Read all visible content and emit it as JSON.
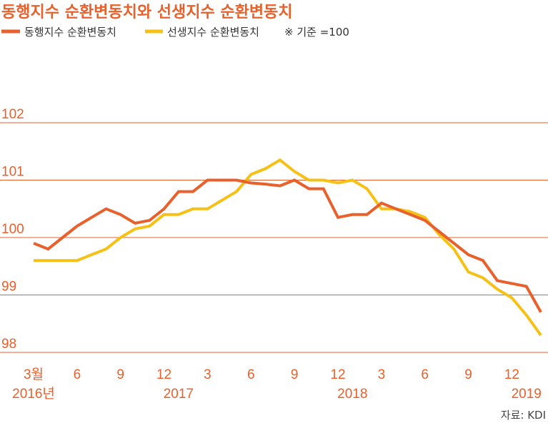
{
  "title": "동행지수 순환변동치와 선생지수 순환변동치",
  "legend_note": "※ 기준 =100",
  "source": "자료: KDI",
  "colors": {
    "coincident": "#e8612c",
    "leading": "#f6c117",
    "grid": "#e8612c",
    "text": "#e8612c"
  },
  "chart_data": {
    "type": "line",
    "x_tick_labels": [
      "3월",
      "6",
      "9",
      "12",
      "3",
      "6",
      "9",
      "12",
      "3",
      "6",
      "9",
      "12"
    ],
    "year_labels": [
      "2016년",
      "2017",
      "2018",
      "2019"
    ],
    "y_ticks": [
      98,
      99,
      100,
      101,
      102
    ],
    "ylim": [
      98,
      102
    ],
    "grid": true,
    "legend_position": "top-left",
    "x": [
      "2016-03",
      "2016-04",
      "2016-05",
      "2016-06",
      "2016-07",
      "2016-08",
      "2016-09",
      "2016-10",
      "2016-11",
      "2016-12",
      "2017-01",
      "2017-02",
      "2017-03",
      "2017-04",
      "2017-05",
      "2017-06",
      "2017-07",
      "2017-08",
      "2017-09",
      "2017-10",
      "2017-11",
      "2017-12",
      "2018-01",
      "2018-02",
      "2018-03",
      "2018-04",
      "2018-05",
      "2018-06",
      "2018-07",
      "2018-08",
      "2018-09",
      "2018-10",
      "2018-11",
      "2018-12",
      "2019-01",
      "2019-02"
    ],
    "series": [
      {
        "name": "동행지수 순환변동치",
        "values": [
          99.9,
          99.8,
          100.0,
          100.2,
          100.35,
          100.5,
          100.4,
          100.25,
          100.3,
          100.5,
          100.8,
          100.8,
          101.0,
          101.0,
          101.0,
          100.95,
          100.93,
          100.9,
          101.0,
          100.85,
          100.85,
          100.35,
          100.4,
          100.4,
          100.6,
          100.5,
          100.4,
          100.3,
          100.1,
          99.9,
          99.7,
          99.6,
          99.25,
          99.2,
          99.15,
          98.7
        ]
      },
      {
        "name": "선생지수 순환변동치",
        "values": [
          99.6,
          99.6,
          99.6,
          99.6,
          99.7,
          99.8,
          100.0,
          100.15,
          100.2,
          100.4,
          100.4,
          100.5,
          100.5,
          100.65,
          100.8,
          101.1,
          101.2,
          101.35,
          101.15,
          101.0,
          101.0,
          100.95,
          101.0,
          100.85,
          100.5,
          100.5,
          100.45,
          100.35,
          100.05,
          99.8,
          99.4,
          99.3,
          99.1,
          98.95,
          98.65,
          98.3
        ]
      }
    ]
  }
}
